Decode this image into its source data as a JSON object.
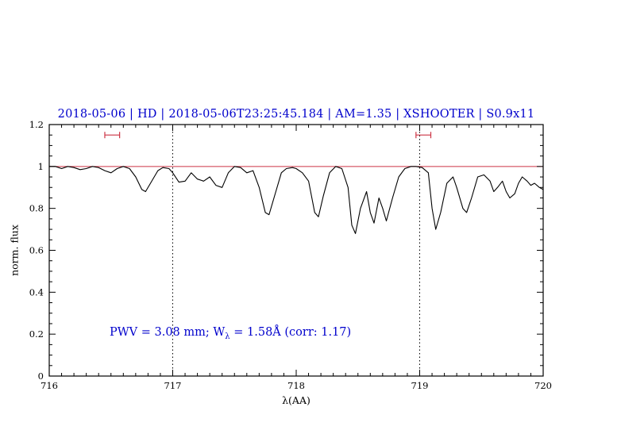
{
  "chart_data": {
    "type": "line",
    "title": "2018-05-06 | HD | 2018-05-06T23:25:45.184 | AM=1.35 | XSHOOTER | S0.9x11",
    "xlabel": "λ(AA)",
    "ylabel": "norm. flux",
    "xlim": [
      716,
      720
    ],
    "ylim": [
      0,
      1.2
    ],
    "x_ticks": [
      716,
      717,
      718,
      719,
      720
    ],
    "x_tick_labels": [
      "716",
      "717",
      "718",
      "719",
      "720"
    ],
    "y_ticks": [
      0,
      0.2,
      0.4,
      0.6,
      0.8,
      1,
      1.2
    ],
    "y_tick_labels": [
      "0",
      "0.2",
      "0.4",
      "0.6",
      "0.8",
      "1",
      "1.2"
    ],
    "grid": "off",
    "dotted_vlines": [
      717,
      719
    ],
    "reference_line": {
      "y": 1.0,
      "color": "#cc3344"
    },
    "range_markers": [
      {
        "x_start": 716.45,
        "x_end": 716.57,
        "y": 1.15
      },
      {
        "x_start": 718.97,
        "x_end": 719.09,
        "y": 1.15
      }
    ],
    "marker_color": "#cc3344",
    "series": [
      {
        "name": "telluric-spectrum",
        "color": "#000000",
        "points": [
          [
            716.0,
            1.0
          ],
          [
            716.05,
            1.0
          ],
          [
            716.1,
            0.99
          ],
          [
            716.15,
            1.0
          ],
          [
            716.2,
            0.995
          ],
          [
            716.25,
            0.985
          ],
          [
            716.3,
            0.99
          ],
          [
            716.35,
            1.0
          ],
          [
            716.4,
            0.995
          ],
          [
            716.45,
            0.98
          ],
          [
            716.5,
            0.97
          ],
          [
            716.55,
            0.99
          ],
          [
            716.6,
            1.0
          ],
          [
            716.65,
            0.99
          ],
          [
            716.7,
            0.95
          ],
          [
            716.75,
            0.89
          ],
          [
            716.78,
            0.88
          ],
          [
            716.82,
            0.92
          ],
          [
            716.88,
            0.98
          ],
          [
            716.92,
            0.995
          ],
          [
            716.97,
            0.99
          ],
          [
            717.0,
            0.97
          ],
          [
            717.05,
            0.925
          ],
          [
            717.1,
            0.93
          ],
          [
            717.15,
            0.97
          ],
          [
            717.2,
            0.94
          ],
          [
            717.25,
            0.93
          ],
          [
            717.3,
            0.95
          ],
          [
            717.35,
            0.91
          ],
          [
            717.4,
            0.9
          ],
          [
            717.45,
            0.97
          ],
          [
            717.5,
            1.0
          ],
          [
            717.55,
            0.995
          ],
          [
            717.6,
            0.97
          ],
          [
            717.65,
            0.98
          ],
          [
            717.7,
            0.9
          ],
          [
            717.75,
            0.78
          ],
          [
            717.78,
            0.77
          ],
          [
            717.82,
            0.85
          ],
          [
            717.88,
            0.97
          ],
          [
            717.92,
            0.99
          ],
          [
            717.97,
            0.995
          ],
          [
            718.0,
            0.99
          ],
          [
            718.05,
            0.97
          ],
          [
            718.1,
            0.93
          ],
          [
            718.15,
            0.78
          ],
          [
            718.18,
            0.76
          ],
          [
            718.22,
            0.86
          ],
          [
            718.27,
            0.97
          ],
          [
            718.32,
            1.0
          ],
          [
            718.37,
            0.99
          ],
          [
            718.42,
            0.9
          ],
          [
            718.45,
            0.72
          ],
          [
            718.48,
            0.68
          ],
          [
            718.52,
            0.8
          ],
          [
            718.57,
            0.88
          ],
          [
            718.6,
            0.78
          ],
          [
            718.63,
            0.73
          ],
          [
            718.67,
            0.85
          ],
          [
            718.7,
            0.8
          ],
          [
            718.73,
            0.74
          ],
          [
            718.78,
            0.85
          ],
          [
            718.83,
            0.95
          ],
          [
            718.88,
            0.99
          ],
          [
            718.93,
            1.0
          ],
          [
            718.97,
            1.0
          ],
          [
            719.02,
            0.995
          ],
          [
            719.07,
            0.97
          ],
          [
            719.1,
            0.8
          ],
          [
            719.13,
            0.7
          ],
          [
            719.17,
            0.78
          ],
          [
            719.22,
            0.92
          ],
          [
            719.27,
            0.95
          ],
          [
            719.3,
            0.9
          ],
          [
            719.35,
            0.8
          ],
          [
            719.38,
            0.78
          ],
          [
            719.42,
            0.85
          ],
          [
            719.47,
            0.95
          ],
          [
            719.52,
            0.96
          ],
          [
            719.57,
            0.93
          ],
          [
            719.6,
            0.88
          ],
          [
            719.63,
            0.9
          ],
          [
            719.67,
            0.93
          ],
          [
            719.7,
            0.88
          ],
          [
            719.73,
            0.85
          ],
          [
            719.77,
            0.87
          ],
          [
            719.8,
            0.92
          ],
          [
            719.83,
            0.95
          ],
          [
            719.87,
            0.93
          ],
          [
            719.9,
            0.91
          ],
          [
            719.93,
            0.92
          ],
          [
            719.97,
            0.9
          ],
          [
            720.0,
            0.89
          ]
        ]
      }
    ],
    "annotation": {
      "prefix": "PWV = 3.08 mm; W",
      "sub": "λ",
      "suffix": " = 1.58Å (corr: 1.17)"
    }
  },
  "colors": {
    "title_text": "#0000cc",
    "annotation_text": "#0000cc",
    "axis": "#000000",
    "spectrum": "#000000",
    "red_elements": "#cc3344"
  }
}
